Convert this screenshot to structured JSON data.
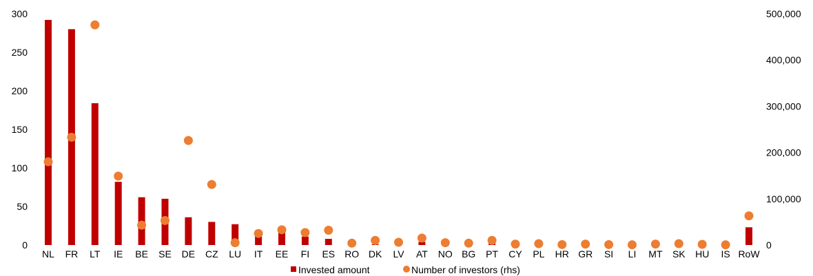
{
  "chart_data": {
    "type": "bar",
    "categories": [
      "NL",
      "FR",
      "LT",
      "IE",
      "BE",
      "SE",
      "DE",
      "CZ",
      "LU",
      "IT",
      "EE",
      "FI",
      "ES",
      "RO",
      "DK",
      "LV",
      "AT",
      "NO",
      "BG",
      "PT",
      "CY",
      "PL",
      "HR",
      "GR",
      "SI",
      "LI",
      "MT",
      "SK",
      "HU",
      "IS",
      "RoW"
    ],
    "series": [
      {
        "name": "Invested amount",
        "axis": "left",
        "kind": "bar",
        "color": "#c00000",
        "values": [
          292,
          280,
          184,
          82,
          62,
          60,
          36,
          30,
          27,
          12,
          18,
          11,
          8,
          1,
          1,
          1,
          4,
          1,
          1,
          2,
          1,
          1,
          0.5,
          0.5,
          0.5,
          0.5,
          0.5,
          0.5,
          0.5,
          0.5,
          23
        ]
      },
      {
        "name": "Number of investors (rhs)",
        "axis": "right",
        "kind": "scatter",
        "color": "#ed7d31",
        "values": [
          180000,
          233000,
          476000,
          149000,
          43000,
          53000,
          226000,
          131000,
          5000,
          25000,
          33000,
          27000,
          32000,
          4000,
          10000,
          6000,
          15000,
          5000,
          4000,
          10000,
          2000,
          3000,
          1000,
          2000,
          1000,
          500,
          2000,
          3000,
          1500,
          500,
          63000
        ]
      }
    ],
    "y_left": {
      "min": 0,
      "max": 300,
      "ticks": [
        "0",
        "50",
        "100",
        "150",
        "200",
        "250",
        "300"
      ]
    },
    "y_right": {
      "min": 0,
      "max": 500000,
      "ticks": [
        "0",
        "100,000",
        "200,000",
        "300,000",
        "400,000",
        "500,000"
      ]
    },
    "title": "",
    "xlabel": "",
    "ylabel": "",
    "grid": false,
    "legend": "bottom-center"
  }
}
